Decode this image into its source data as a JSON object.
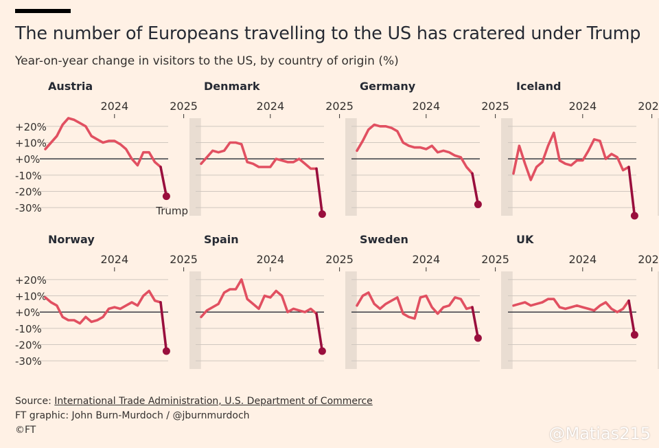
{
  "header": {
    "title": "The number of Europeans travelling to the US has cratered under Trump",
    "subtitle": "Year-on-year change in visitors to the US, by country of origin (%)"
  },
  "footer": {
    "source_prefix": "Source: ",
    "source_link": "International Trade Administration, U.S. Department of Commerce",
    "credit": "FT graphic: John Burn-Murdoch / @jburnmurdoch",
    "copyright": "©FT"
  },
  "watermark": "@Matias215",
  "colors": {
    "background": "#fff1e5",
    "line": "#e15061",
    "endpoint": "#990f3d",
    "highlight_band": "#e9ddd2",
    "gridline": "#cfc7bf",
    "zero_line": "#262a33"
  },
  "chart_data": {
    "type": "line",
    "title": "The number of Europeans travelling to the US has cratered under Trump",
    "ylabel": "Year-on-year change in visitors to the US, by country of origin (%)",
    "x_ticks": [
      {
        "label": "2024",
        "month_index": 12
      },
      {
        "label": "2025",
        "month_index": 24
      }
    ],
    "ylim": [
      -35,
      25
    ],
    "y_ticks": [
      20,
      10,
      0,
      -10,
      -20,
      -30
    ],
    "y_tick_labels": [
      "+20%",
      "+10%",
      "+0%",
      "-10%",
      "-20%",
      "-30%"
    ],
    "x_unit": "months since Jan 2023",
    "highlight": {
      "from_month": 25,
      "to_month": 27,
      "label": "Trump"
    },
    "panels": [
      {
        "name": "Austria",
        "values": [
          6,
          10,
          14,
          21,
          25,
          24,
          22,
          20,
          14,
          12,
          10,
          11,
          11,
          9,
          6,
          0,
          -4,
          4,
          4,
          -2,
          -5,
          -23
        ]
      },
      {
        "name": "Denmark",
        "values": [
          -3,
          1,
          5,
          4,
          5,
          10,
          10,
          9,
          -2,
          -3,
          -5,
          -5,
          -5,
          0,
          -1,
          -2,
          -2,
          0,
          -3,
          -6,
          -6,
          -34
        ]
      },
      {
        "name": "Germany",
        "values": [
          5,
          11,
          18,
          21,
          20,
          20,
          19,
          17,
          10,
          8,
          7,
          7,
          6,
          8,
          4,
          5,
          4,
          2,
          1,
          -5,
          -9,
          -28
        ]
      },
      {
        "name": "Iceland",
        "values": [
          -9,
          8,
          -3,
          -13,
          -5,
          -2,
          8,
          16,
          -1,
          -3,
          -4,
          -1,
          -1,
          5,
          12,
          11,
          0,
          3,
          1,
          -7,
          -5,
          -35
        ]
      },
      {
        "name": "Norway",
        "values": [
          9,
          6,
          4,
          -3,
          -5,
          -5,
          -7,
          -3,
          -6,
          -5,
          -3,
          2,
          3,
          2,
          4,
          6,
          4,
          10,
          13,
          7,
          6,
          -24
        ]
      },
      {
        "name": "Spain",
        "values": [
          -3,
          1,
          3,
          5,
          12,
          14,
          14,
          20,
          8,
          5,
          2,
          10,
          9,
          13,
          10,
          0,
          2,
          1,
          0,
          2,
          -1,
          -24
        ]
      },
      {
        "name": "Sweden",
        "values": [
          4,
          10,
          12,
          5,
          2,
          5,
          7,
          9,
          -1,
          -3,
          -4,
          9,
          10,
          3,
          -1,
          3,
          4,
          9,
          8,
          2,
          3,
          -16
        ]
      },
      {
        "name": "UK",
        "values": [
          4,
          5,
          6,
          4,
          5,
          6,
          8,
          8,
          3,
          2,
          3,
          4,
          3,
          2,
          1,
          4,
          6,
          2,
          0,
          2,
          7,
          -14
        ]
      }
    ]
  }
}
